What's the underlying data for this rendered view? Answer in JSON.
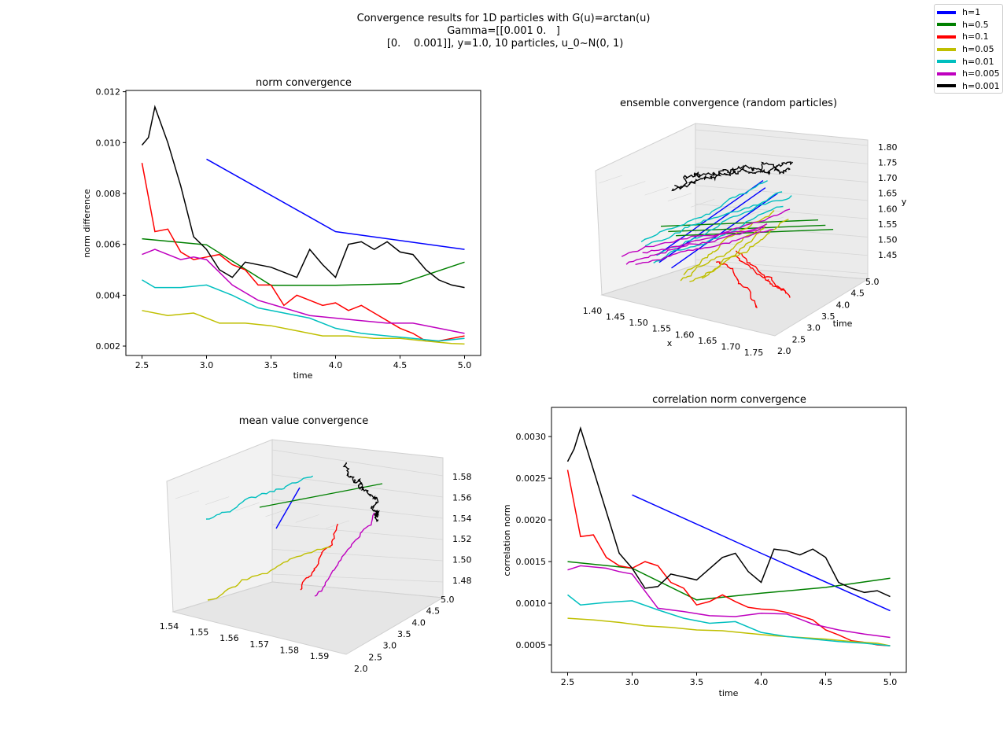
{
  "figure": {
    "suptitle_lines": [
      "Convergence results for 1D particles with G(u)=arctan(u)",
      "Gamma=[[0.001 0.   ]",
      " [0.    0.001]], y=1.0, 10 particles, u_0~N(0, 1)"
    ]
  },
  "legend": [
    {
      "label": "h=1",
      "color": "#0000ff"
    },
    {
      "label": "h=0.5",
      "color": "#008000"
    },
    {
      "label": "h=0.1",
      "color": "#ff0000"
    },
    {
      "label": "h=0.05",
      "color": "#bfbf00"
    },
    {
      "label": "h=0.01",
      "color": "#00bfbf"
    },
    {
      "label": "h=0.005",
      "color": "#bf00bf"
    },
    {
      "label": "h=0.001",
      "color": "#000000"
    }
  ],
  "chart_data": [
    {
      "type": "line",
      "title": "norm convergence",
      "xlabel": "time",
      "ylabel": "norm difference",
      "xlim": [
        2.375,
        5.125
      ],
      "ylim": [
        0.00163,
        0.01205
      ],
      "xticks": [
        "2.5",
        "3.0",
        "3.5",
        "4.0",
        "4.5",
        "5.0"
      ],
      "yticks": [
        "0.002",
        "0.004",
        "0.006",
        "0.008",
        "0.010",
        "0.012"
      ],
      "series": [
        {
          "name": "h=1",
          "color": "#0000ff",
          "x": [
            3.0,
            4.0,
            5.0
          ],
          "y": [
            0.00935,
            0.0065,
            0.0058
          ]
        },
        {
          "name": "h=0.5",
          "color": "#008000",
          "x": [
            2.5,
            3.0,
            3.5,
            4.0,
            4.5,
            5.0
          ],
          "y": [
            0.00622,
            0.00598,
            0.00439,
            0.00439,
            0.00445,
            0.0053
          ]
        },
        {
          "name": "h=0.1",
          "color": "#ff0000",
          "x": [
            2.5,
            2.6,
            2.7,
            2.8,
            2.9,
            3.0,
            3.1,
            3.2,
            3.3,
            3.4,
            3.5,
            3.6,
            3.7,
            3.8,
            3.9,
            4.0,
            4.1,
            4.2,
            4.3,
            4.4,
            4.5,
            4.6,
            4.7,
            4.8,
            4.9,
            5.0
          ],
          "y": [
            0.0092,
            0.0065,
            0.0066,
            0.0057,
            0.0054,
            0.0055,
            0.0056,
            0.0052,
            0.005,
            0.0044,
            0.0044,
            0.0036,
            0.004,
            0.0038,
            0.0036,
            0.0037,
            0.0034,
            0.0036,
            0.0033,
            0.003,
            0.0027,
            0.0025,
            0.0022,
            0.0022,
            0.0023,
            0.0024
          ]
        },
        {
          "name": "h=0.05",
          "color": "#bfbf00",
          "x": [
            2.5,
            2.7,
            2.9,
            3.1,
            3.3,
            3.5,
            3.7,
            3.9,
            4.1,
            4.3,
            4.5,
            4.7,
            4.9,
            5.0
          ],
          "y": [
            0.0034,
            0.0032,
            0.0033,
            0.0029,
            0.0029,
            0.0028,
            0.0026,
            0.0024,
            0.0024,
            0.0023,
            0.0023,
            0.0022,
            0.0021,
            0.00208
          ]
        },
        {
          "name": "h=0.01",
          "color": "#00bfbf",
          "x": [
            2.5,
            2.6,
            2.8,
            3.0,
            3.2,
            3.4,
            3.6,
            3.8,
            4.0,
            4.2,
            4.4,
            4.6,
            4.8,
            5.0
          ],
          "y": [
            0.0046,
            0.0043,
            0.0043,
            0.0044,
            0.004,
            0.0035,
            0.0033,
            0.0031,
            0.0027,
            0.0025,
            0.0024,
            0.0023,
            0.0022,
            0.0023
          ]
        },
        {
          "name": "h=0.005",
          "color": "#bf00bf",
          "x": [
            2.5,
            2.6,
            2.8,
            2.9,
            3.0,
            3.2,
            3.4,
            3.6,
            3.8,
            4.0,
            4.2,
            4.4,
            4.6,
            4.8,
            5.0
          ],
          "y": [
            0.0056,
            0.0058,
            0.0054,
            0.0055,
            0.0054,
            0.0044,
            0.0038,
            0.0035,
            0.0032,
            0.0031,
            0.003,
            0.0029,
            0.0029,
            0.0027,
            0.0025
          ]
        },
        {
          "name": "h=0.001",
          "color": "#000000",
          "x": [
            2.5,
            2.55,
            2.6,
            2.7,
            2.8,
            2.9,
            3.0,
            3.1,
            3.2,
            3.3,
            3.5,
            3.7,
            3.8,
            3.9,
            4.0,
            4.1,
            4.2,
            4.3,
            4.4,
            4.5,
            4.6,
            4.7,
            4.8,
            4.9,
            5.0
          ],
          "y": [
            0.0099,
            0.0102,
            0.0114,
            0.01,
            0.0083,
            0.0063,
            0.0058,
            0.005,
            0.0047,
            0.0053,
            0.0051,
            0.0047,
            0.0058,
            0.0052,
            0.0047,
            0.006,
            0.0061,
            0.0058,
            0.0061,
            0.0057,
            0.0056,
            0.005,
            0.0046,
            0.0044,
            0.0043
          ]
        }
      ]
    },
    {
      "type": "line",
      "subtype": "3d-line",
      "title": "ensemble convergence (random particles)",
      "xlabel": "x",
      "ylabel": "time",
      "zlabel": "y",
      "xticks": [
        "1.40",
        "1.45",
        "1.50",
        "1.55",
        "1.60",
        "1.65",
        "1.70",
        "1.75"
      ],
      "yticks": [
        "2.0",
        "2.5",
        "3.0",
        "3.5",
        "4.0",
        "4.5",
        "5.0"
      ],
      "zticks": [
        "1.45",
        "1.50",
        "1.55",
        "1.60",
        "1.65",
        "1.70",
        "1.75",
        "1.80"
      ],
      "series": [
        {
          "name": "h=1",
          "color": "#0000ff"
        },
        {
          "name": "h=0.5",
          "color": "#008000"
        },
        {
          "name": "h=0.1",
          "color": "#ff0000"
        },
        {
          "name": "h=0.05",
          "color": "#bfbf00"
        },
        {
          "name": "h=0.01",
          "color": "#00bfbf"
        },
        {
          "name": "h=0.005",
          "color": "#bf00bf"
        },
        {
          "name": "h=0.001",
          "color": "#000000"
        }
      ]
    },
    {
      "type": "line",
      "subtype": "3d-line",
      "title": "mean value convergence",
      "xticks": [
        "1.54",
        "1.55",
        "1.56",
        "1.57",
        "1.58",
        "1.59"
      ],
      "yticks": [
        "2.0",
        "2.5",
        "3.0",
        "3.5",
        "4.0",
        "4.5",
        "5.0"
      ],
      "zticks": [
        "1.48",
        "1.50",
        "1.52",
        "1.54",
        "1.56",
        "1.58"
      ],
      "series": [
        {
          "name": "h=1",
          "color": "#0000ff"
        },
        {
          "name": "h=0.5",
          "color": "#008000"
        },
        {
          "name": "h=0.1",
          "color": "#ff0000"
        },
        {
          "name": "h=0.05",
          "color": "#bfbf00"
        },
        {
          "name": "h=0.01",
          "color": "#00bfbf"
        },
        {
          "name": "h=0.005",
          "color": "#bf00bf"
        },
        {
          "name": "h=0.001",
          "color": "#000000"
        }
      ]
    },
    {
      "type": "line",
      "title": "correlation norm convergence",
      "xlabel": "time",
      "ylabel": "correlation norm",
      "xlim": [
        2.375,
        5.125
      ],
      "ylim": [
        0.00017,
        0.00335
      ],
      "xticks": [
        "2.5",
        "3.0",
        "3.5",
        "4.0",
        "4.5",
        "5.0"
      ],
      "yticks": [
        "0.0005",
        "0.0010",
        "0.0015",
        "0.0020",
        "0.0025",
        "0.0030"
      ],
      "series": [
        {
          "name": "h=1",
          "color": "#0000ff",
          "x": [
            3.0,
            4.0,
            5.0
          ],
          "y": [
            0.0023,
            0.0016,
            0.00091
          ]
        },
        {
          "name": "h=0.5",
          "color": "#008000",
          "x": [
            2.5,
            3.0,
            3.5,
            4.0,
            4.5,
            5.0
          ],
          "y": [
            0.0015,
            0.00142,
            0.00104,
            0.00112,
            0.00119,
            0.0013
          ]
        },
        {
          "name": "h=0.1",
          "color": "#ff0000",
          "x": [
            2.5,
            2.6,
            2.7,
            2.8,
            2.9,
            3.0,
            3.1,
            3.2,
            3.3,
            3.4,
            3.5,
            3.6,
            3.7,
            3.8,
            3.9,
            4.0,
            4.1,
            4.2,
            4.3,
            4.4,
            4.5,
            4.6,
            4.7,
            4.8,
            4.9,
            5.0
          ],
          "y": [
            0.0026,
            0.0018,
            0.00182,
            0.00155,
            0.00145,
            0.00142,
            0.0015,
            0.00145,
            0.00125,
            0.00118,
            0.00098,
            0.00102,
            0.0011,
            0.00102,
            0.00095,
            0.00093,
            0.00092,
            0.00089,
            0.00085,
            0.0008,
            0.00068,
            0.00062,
            0.00055,
            0.00053,
            0.0005,
            0.00049
          ]
        },
        {
          "name": "h=0.05",
          "color": "#bfbf00",
          "x": [
            2.5,
            2.7,
            2.9,
            3.1,
            3.3,
            3.5,
            3.7,
            3.9,
            4.1,
            4.3,
            4.5,
            4.7,
            4.9,
            5.0
          ],
          "y": [
            0.00082,
            0.0008,
            0.00077,
            0.00073,
            0.00071,
            0.00068,
            0.00067,
            0.00064,
            0.00061,
            0.00059,
            0.00057,
            0.00054,
            0.00052,
            0.00049
          ]
        },
        {
          "name": "h=0.01",
          "color": "#00bfbf",
          "x": [
            2.5,
            2.6,
            2.8,
            3.0,
            3.2,
            3.4,
            3.6,
            3.8,
            4.0,
            4.2,
            4.4,
            4.6,
            4.8,
            5.0
          ],
          "y": [
            0.0011,
            0.00098,
            0.00101,
            0.00103,
            0.00092,
            0.00082,
            0.00076,
            0.00078,
            0.00065,
            0.0006,
            0.00057,
            0.00054,
            0.00052,
            0.00049
          ]
        },
        {
          "name": "h=0.005",
          "color": "#bf00bf",
          "x": [
            2.5,
            2.6,
            2.8,
            2.9,
            3.0,
            3.2,
            3.4,
            3.6,
            3.8,
            4.0,
            4.2,
            4.4,
            4.6,
            4.8,
            5.0
          ],
          "y": [
            0.0014,
            0.00145,
            0.00142,
            0.00138,
            0.00135,
            0.00094,
            0.0009,
            0.00085,
            0.00084,
            0.00088,
            0.00087,
            0.00075,
            0.00068,
            0.00063,
            0.00059
          ]
        },
        {
          "name": "h=0.001",
          "color": "#000000",
          "x": [
            2.5,
            2.55,
            2.6,
            2.7,
            2.8,
            2.9,
            3.0,
            3.1,
            3.2,
            3.3,
            3.5,
            3.7,
            3.8,
            3.9,
            4.0,
            4.1,
            4.2,
            4.3,
            4.4,
            4.5,
            4.6,
            4.7,
            4.8,
            4.9,
            5.0
          ],
          "y": [
            0.0027,
            0.00285,
            0.0031,
            0.0026,
            0.0021,
            0.0016,
            0.00142,
            0.00118,
            0.0012,
            0.00135,
            0.00128,
            0.00155,
            0.0016,
            0.00138,
            0.00125,
            0.00165,
            0.00163,
            0.00158,
            0.00165,
            0.00155,
            0.00125,
            0.00118,
            0.00113,
            0.00115,
            0.00108
          ]
        }
      ]
    }
  ]
}
